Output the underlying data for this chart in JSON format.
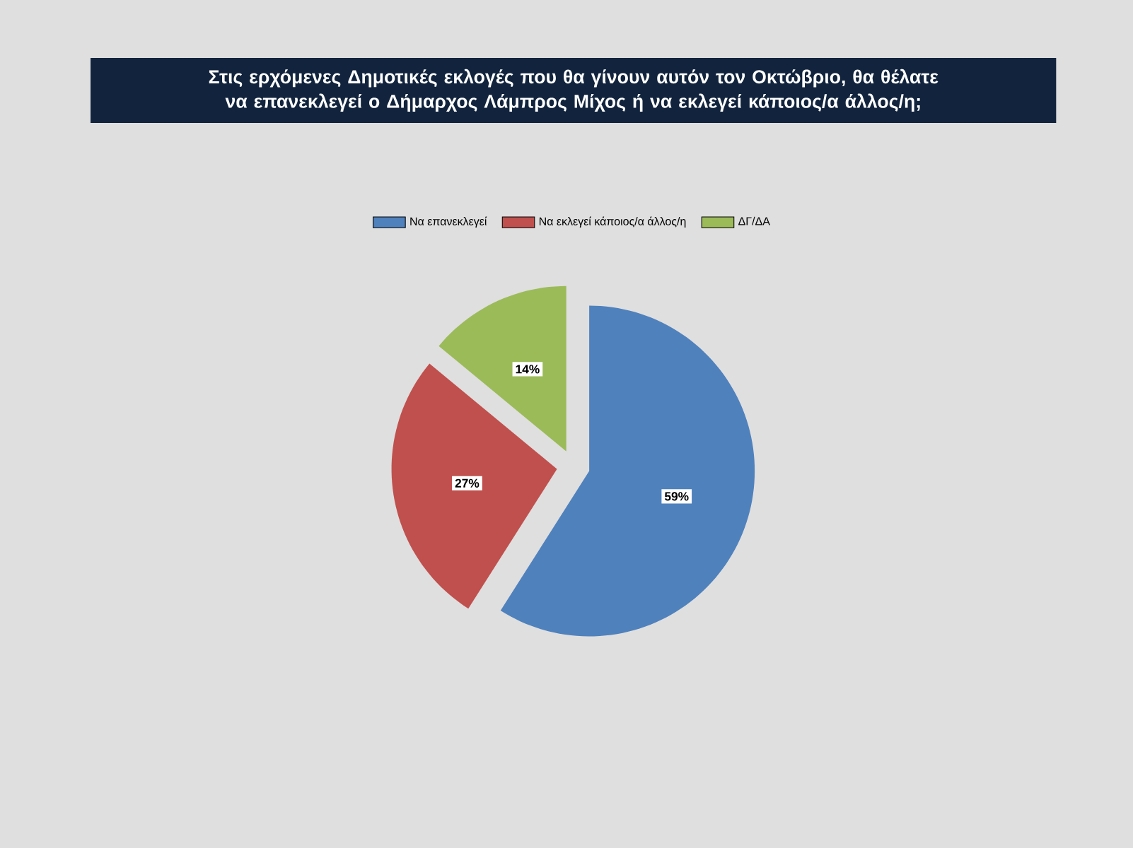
{
  "chart_data": {
    "type": "pie",
    "title": "Στις ερχόμενες Δημοτικές εκλογές που θα γίνουν αυτόν τον Οκτώβριο, θα θέλατε να επανεκλεγεί ο Δήμαρχος Λάμπρος Μίχος ή να εκλεγεί κάποιος/α άλλος/η;",
    "categories": [
      "Να επανεκλεγεί",
      "Να εκλεγεί κάποιος/α άλλος/η",
      "ΔΓ/ΔΑ"
    ],
    "values": [
      59,
      27,
      14
    ],
    "colors": [
      "#4f81bd",
      "#c0504d",
      "#9bbb59"
    ],
    "value_labels": [
      "59%",
      "27%",
      "14%"
    ],
    "legend": "top"
  }
}
